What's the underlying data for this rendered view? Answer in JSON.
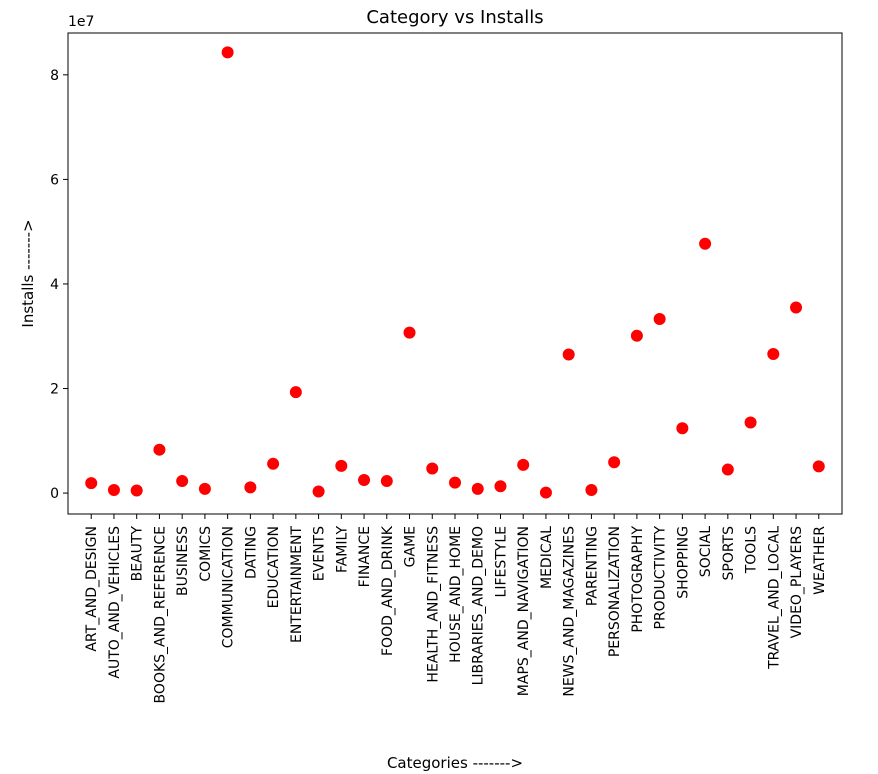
{
  "chart_data": {
    "type": "scatter",
    "title": "Category vs Installs",
    "xlabel": "Categories ------->",
    "ylabel": "Installs ------->",
    "y_offset_label": "1e7",
    "y_scale": 10000000,
    "ylim": [
      -4000000,
      88000000
    ],
    "y_ticks": [
      0,
      20000000,
      40000000,
      60000000,
      80000000
    ],
    "y_tick_labels": [
      "0",
      "2",
      "4",
      "6",
      "8"
    ],
    "marker_color": "#ff0000",
    "grid": false,
    "categories": [
      "ART_AND_DESIGN",
      "AUTO_AND_VEHICLES",
      "BEAUTY",
      "BOOKS_AND_REFERENCE",
      "BUSINESS",
      "COMICS",
      "COMMUNICATION",
      "DATING",
      "EDUCATION",
      "ENTERTAINMENT",
      "EVENTS",
      "FAMILY",
      "FINANCE",
      "FOOD_AND_DRINK",
      "GAME",
      "HEALTH_AND_FITNESS",
      "HOUSE_AND_HOME",
      "LIBRARIES_AND_DEMO",
      "LIFESTYLE",
      "MAPS_AND_NAVIGATION",
      "MEDICAL",
      "NEWS_AND_MAGAZINES",
      "PARENTING",
      "PERSONALIZATION",
      "PHOTOGRAPHY",
      "PRODUCTIVITY",
      "SHOPPING",
      "SOCIAL",
      "SPORTS",
      "TOOLS",
      "TRAVEL_AND_LOCAL",
      "VIDEO_PLAYERS",
      "WEATHER"
    ],
    "values": [
      1900000,
      600000,
      500000,
      8300000,
      2300000,
      800000,
      84300000,
      1100000,
      5600000,
      19300000,
      300000,
      5200000,
      2500000,
      2300000,
      30700000,
      4700000,
      2000000,
      800000,
      1300000,
      5400000,
      100000,
      26500000,
      600000,
      5900000,
      30100000,
      33300000,
      12400000,
      47700000,
      4500000,
      13500000,
      26600000,
      35500000,
      5100000
    ]
  }
}
